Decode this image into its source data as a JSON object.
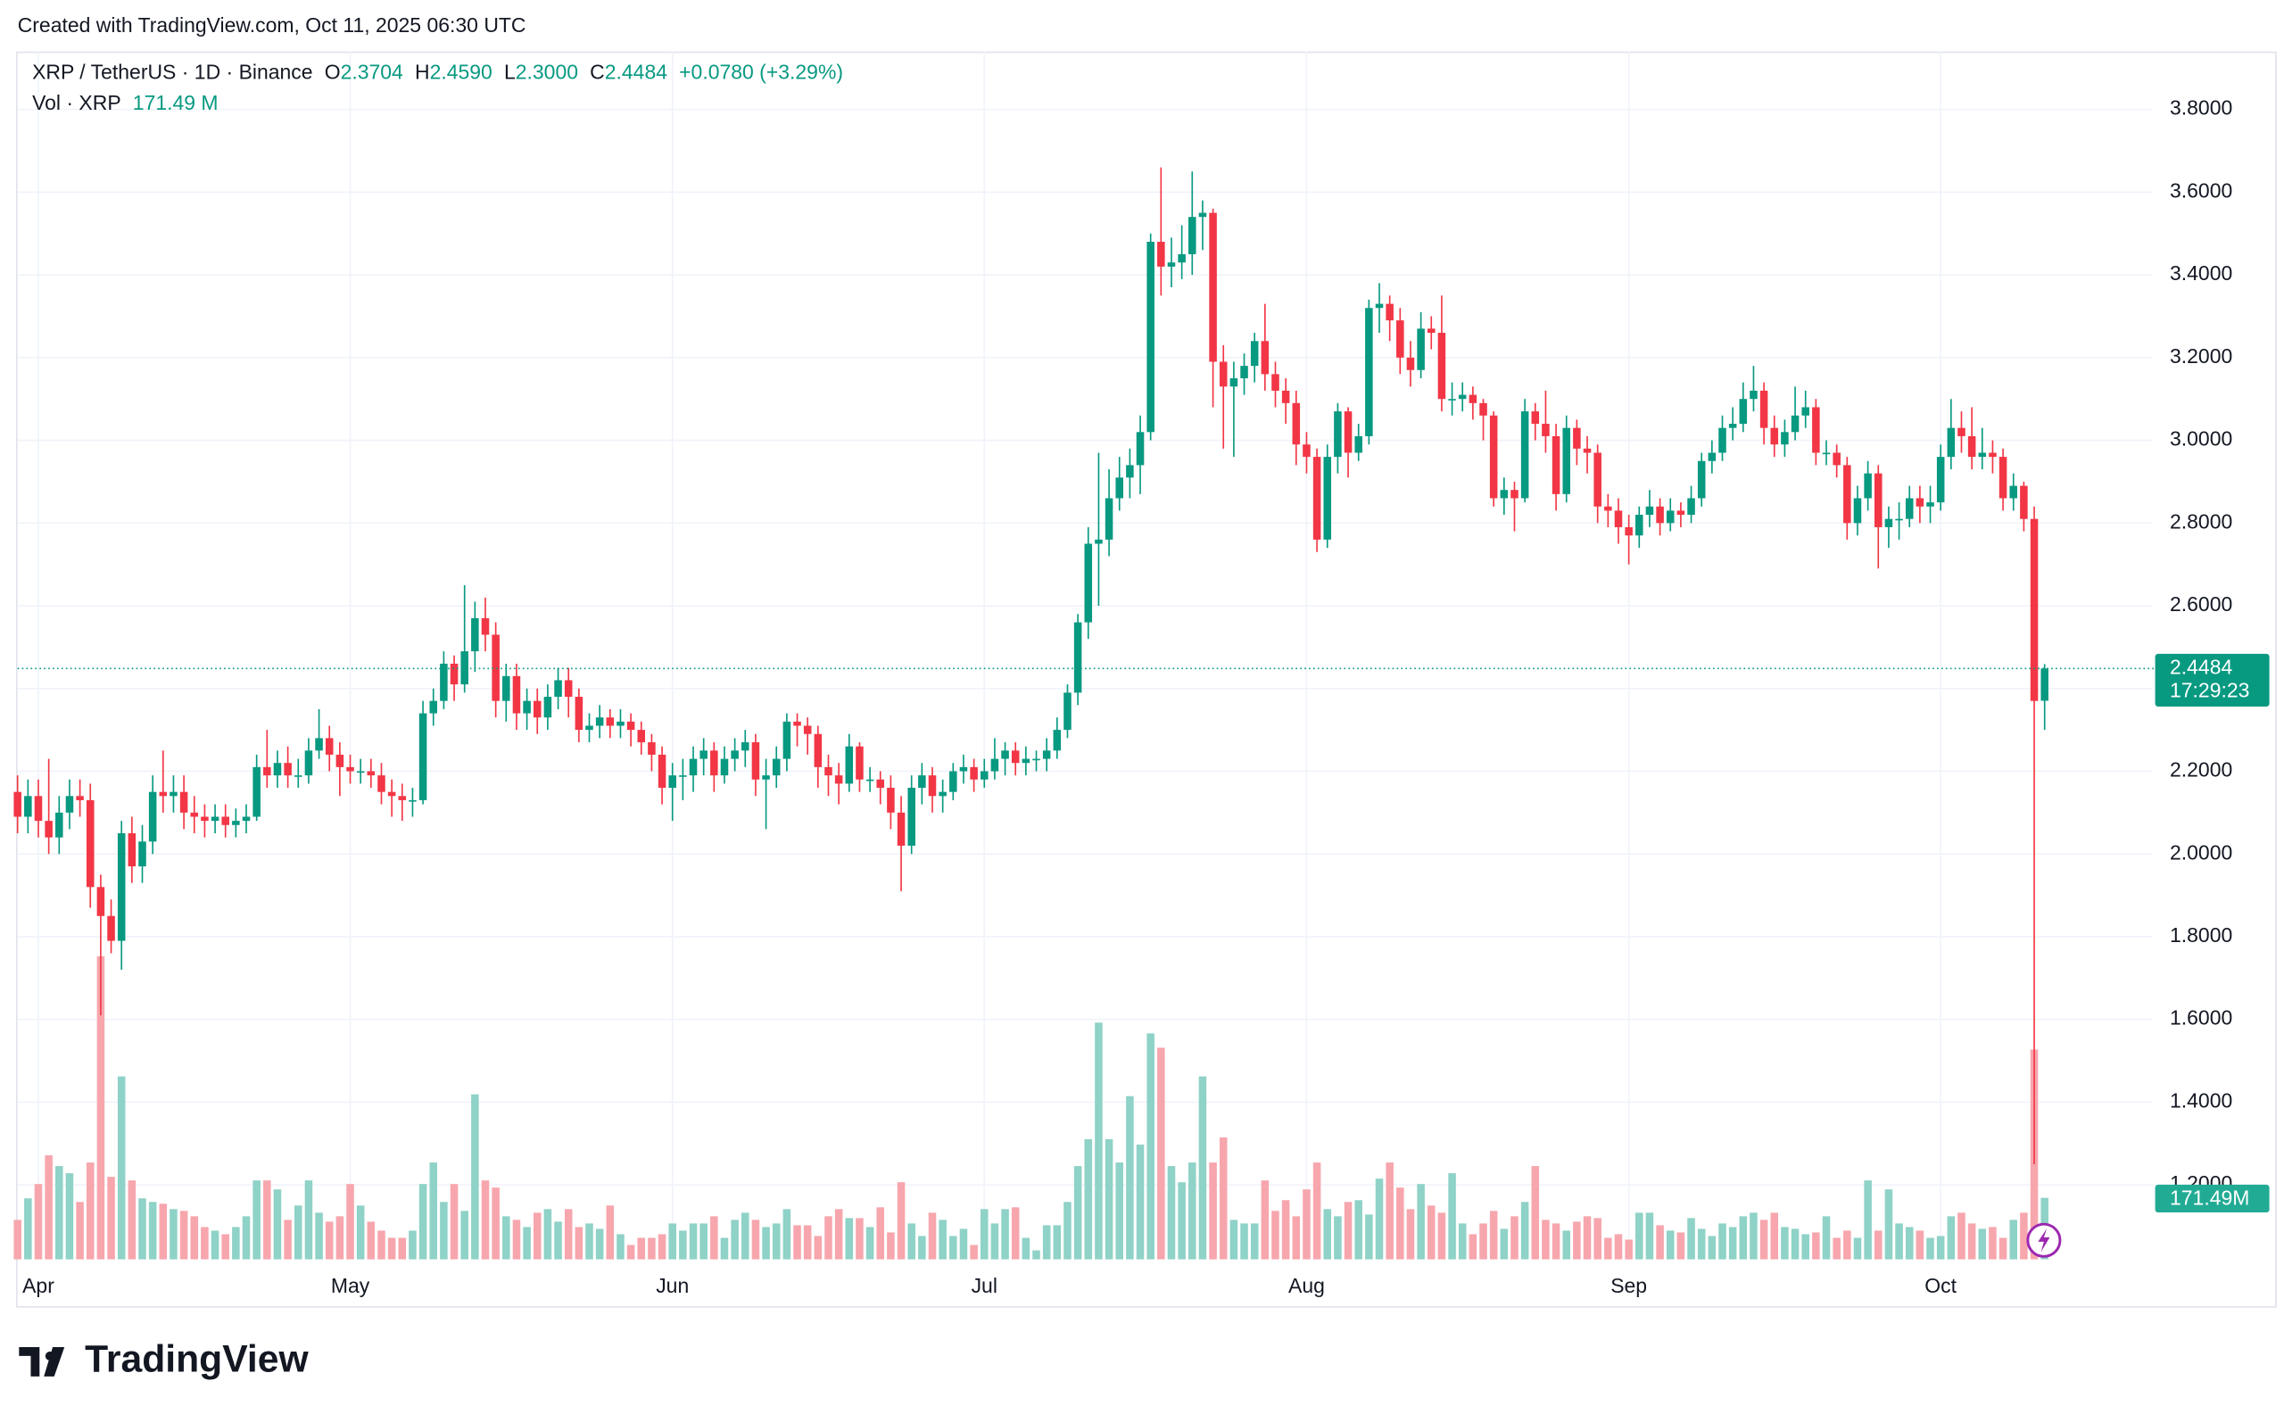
{
  "created": "Created with TradingView.com, Oct 11, 2025 06:30 UTC",
  "logo": "TradingView",
  "header": {
    "symbol": "XRP / TetherUS · 1D · Binance",
    "o_label": "O",
    "o": "2.3704",
    "h_label": "H",
    "h": "2.4590",
    "l_label": "L",
    "l": "2.3000",
    "c_label": "C",
    "c": "2.4484",
    "change": "+0.0780 (+3.29%)",
    "vol_label": "Vol · XRP",
    "vol": "171.49 M"
  },
  "chart_data": {
    "type": "candlestick",
    "up_color": "#089981",
    "down_color": "#f23645",
    "volume_up_color": "#8fd2c7",
    "volume_down_color": "#f7a6ad",
    "ylim": [
      1.02,
      3.94
    ],
    "yticks": [
      {
        "value": 1.2,
        "label": "1.2000"
      },
      {
        "value": 1.4,
        "label": "1.4000"
      },
      {
        "value": 1.6,
        "label": "1.6000"
      },
      {
        "value": 1.8,
        "label": "1.8000"
      },
      {
        "value": 2.0,
        "label": "2.0000"
      },
      {
        "value": 2.2,
        "label": "2.2000"
      },
      {
        "value": 2.4,
        "label": "2.4000"
      },
      {
        "value": 2.6,
        "label": "2.6000"
      },
      {
        "value": 2.8,
        "label": "2.8000"
      },
      {
        "value": 3.0,
        "label": "3.0000"
      },
      {
        "value": 3.2,
        "label": "3.2000"
      },
      {
        "value": 3.4,
        "label": "3.4000"
      },
      {
        "value": 3.6,
        "label": "3.6000"
      },
      {
        "value": 3.8,
        "label": "3.8000"
      }
    ],
    "grid": true,
    "countdown": "17:29:23",
    "volume_tag": "171.49M",
    "categories": [
      null,
      null,
      "Apr",
      null,
      null,
      null,
      null,
      null,
      null,
      null,
      null,
      null,
      null,
      null,
      null,
      null,
      null,
      null,
      null,
      null,
      null,
      null,
      null,
      null,
      null,
      null,
      null,
      null,
      null,
      null,
      null,
      null,
      "May",
      null,
      null,
      null,
      null,
      null,
      null,
      null,
      null,
      null,
      null,
      null,
      null,
      null,
      null,
      null,
      null,
      null,
      null,
      null,
      null,
      null,
      null,
      null,
      null,
      null,
      null,
      null,
      null,
      null,
      null,
      "Jun",
      null,
      null,
      null,
      null,
      null,
      null,
      null,
      null,
      null,
      null,
      null,
      null,
      null,
      null,
      null,
      null,
      null,
      null,
      null,
      null,
      null,
      null,
      null,
      null,
      null,
      null,
      null,
      null,
      null,
      "Jul",
      null,
      null,
      null,
      null,
      null,
      null,
      null,
      null,
      null,
      null,
      null,
      null,
      null,
      null,
      null,
      null,
      null,
      null,
      null,
      null,
      null,
      null,
      null,
      null,
      null,
      null,
      null,
      null,
      null,
      null,
      "Aug",
      null,
      null,
      null,
      null,
      null,
      null,
      null,
      null,
      null,
      null,
      null,
      null,
      null,
      null,
      null,
      null,
      null,
      null,
      null,
      null,
      null,
      null,
      null,
      null,
      null,
      null,
      null,
      null,
      null,
      null,
      "Sep",
      null,
      null,
      null,
      null,
      null,
      null,
      null,
      null,
      null,
      null,
      null,
      null,
      null,
      null,
      null,
      null,
      null,
      null,
      null,
      null,
      null,
      null,
      null,
      null,
      null,
      null,
      null,
      null,
      null,
      "Oct",
      null,
      null,
      null,
      null,
      null,
      null,
      null,
      null,
      null,
      null
    ],
    "open": [
      2.15,
      2.09,
      2.14,
      2.08,
      2.04,
      2.1,
      2.14,
      2.13,
      1.92,
      1.85,
      1.79,
      2.05,
      1.97,
      2.03,
      2.15,
      2.14,
      2.15,
      2.1,
      2.09,
      2.08,
      2.09,
      2.07,
      2.08,
      2.09,
      2.21,
      2.19,
      2.22,
      2.19,
      2.19,
      2.25,
      2.28,
      2.24,
      2.21,
      2.2,
      2.2,
      2.19,
      2.15,
      2.14,
      2.13,
      2.13,
      2.34,
      2.37,
      2.46,
      2.41,
      2.49,
      2.57,
      2.53,
      2.37,
      2.43,
      2.34,
      2.37,
      2.33,
      2.38,
      2.42,
      2.38,
      2.3,
      2.31,
      2.33,
      2.31,
      2.32,
      2.3,
      2.27,
      2.24,
      2.16,
      2.19,
      2.19,
      2.23,
      2.25,
      2.19,
      2.23,
      2.25,
      2.27,
      2.18,
      2.19,
      2.23,
      2.32,
      2.31,
      2.29,
      2.21,
      2.19,
      2.17,
      2.26,
      2.18,
      2.18,
      2.16,
      2.1,
      2.02,
      2.16,
      2.19,
      2.14,
      2.15,
      2.2,
      2.21,
      2.18,
      2.2,
      2.23,
      2.25,
      2.22,
      2.23,
      2.23,
      2.25,
      2.3,
      2.39,
      2.56,
      2.75,
      2.76,
      2.86,
      2.91,
      2.94,
      3.02,
      3.48,
      3.42,
      3.43,
      3.45,
      3.54,
      3.55,
      3.19,
      3.13,
      3.15,
      3.18,
      3.24,
      3.16,
      3.12,
      3.09,
      2.99,
      2.96,
      2.76,
      2.96,
      3.07,
      2.97,
      3.01,
      3.32,
      3.33,
      3.29,
      3.2,
      3.17,
      3.27,
      3.26,
      3.1,
      3.1,
      3.11,
      3.09,
      3.06,
      2.86,
      2.88,
      2.86,
      3.07,
      3.04,
      3.01,
      2.87,
      3.03,
      2.98,
      2.97,
      2.84,
      2.83,
      2.79,
      2.77,
      2.82,
      2.84,
      2.8,
      2.83,
      2.82,
      2.86,
      2.95,
      2.97,
      3.03,
      3.04,
      3.1,
      3.12,
      3.03,
      2.99,
      3.02,
      3.06,
      3.08,
      2.97,
      2.97,
      2.94,
      2.8,
      2.86,
      2.92,
      2.79,
      2.81,
      2.81,
      2.86,
      2.84,
      2.85,
      2.96,
      3.03,
      3.01,
      2.96,
      2.97,
      2.96,
      2.86,
      2.89,
      2.81,
      2.3704
    ],
    "high": [
      2.19,
      2.18,
      2.18,
      2.23,
      2.14,
      2.18,
      2.18,
      2.17,
      1.95,
      1.89,
      2.08,
      2.09,
      2.07,
      2.19,
      2.25,
      2.19,
      2.19,
      2.14,
      2.12,
      2.12,
      2.12,
      2.11,
      2.12,
      2.24,
      2.3,
      2.25,
      2.26,
      2.23,
      2.28,
      2.35,
      2.31,
      2.27,
      2.24,
      2.23,
      2.23,
      2.22,
      2.18,
      2.17,
      2.16,
      2.37,
      2.4,
      2.49,
      2.48,
      2.65,
      2.61,
      2.62,
      2.56,
      2.46,
      2.46,
      2.4,
      2.4,
      2.41,
      2.45,
      2.45,
      2.4,
      2.34,
      2.36,
      2.35,
      2.35,
      2.34,
      2.32,
      2.29,
      2.26,
      2.22,
      2.23,
      2.26,
      2.28,
      2.27,
      2.26,
      2.28,
      2.3,
      2.29,
      2.23,
      2.26,
      2.34,
      2.34,
      2.33,
      2.31,
      2.24,
      2.22,
      2.29,
      2.27,
      2.21,
      2.2,
      2.19,
      2.14,
      2.19,
      2.22,
      2.21,
      2.18,
      2.22,
      2.24,
      2.23,
      2.23,
      2.28,
      2.27,
      2.27,
      2.26,
      2.25,
      2.28,
      2.33,
      2.41,
      2.58,
      2.79,
      2.97,
      2.93,
      2.96,
      2.98,
      3.06,
      3.5,
      3.66,
      3.49,
      3.52,
      3.65,
      3.58,
      3.56,
      3.23,
      3.19,
      3.21,
      3.26,
      3.33,
      3.19,
      3.15,
      3.12,
      3.02,
      2.98,
      2.99,
      3.09,
      3.08,
      3.04,
      3.34,
      3.38,
      3.35,
      3.32,
      3.24,
      3.31,
      3.3,
      3.35,
      3.14,
      3.14,
      3.13,
      3.1,
      3.07,
      2.91,
      2.9,
      3.1,
      3.09,
      3.12,
      3.04,
      3.06,
      3.05,
      3.01,
      2.99,
      2.87,
      2.86,
      2.82,
      2.84,
      2.88,
      2.86,
      2.86,
      2.85,
      2.89,
      2.97,
      3.0,
      3.06,
      3.08,
      3.14,
      3.18,
      3.14,
      3.06,
      3.05,
      3.13,
      3.12,
      3.1,
      3.0,
      2.99,
      2.96,
      2.89,
      2.95,
      2.94,
      2.84,
      2.85,
      2.89,
      2.89,
      2.89,
      2.99,
      3.1,
      3.07,
      3.08,
      3.03,
      3.0,
      2.98,
      2.92,
      2.9,
      2.84,
      2.459
    ],
    "low": [
      2.05,
      2.05,
      2.04,
      2.0,
      2.0,
      2.06,
      2.09,
      1.87,
      1.61,
      1.76,
      1.72,
      1.93,
      1.93,
      2.0,
      2.1,
      2.1,
      2.06,
      2.05,
      2.04,
      2.05,
      2.04,
      2.04,
      2.05,
      2.08,
      2.16,
      2.16,
      2.16,
      2.16,
      2.17,
      2.23,
      2.2,
      2.14,
      2.17,
      2.17,
      2.16,
      2.12,
      2.09,
      2.08,
      2.09,
      2.12,
      2.31,
      2.35,
      2.37,
      2.39,
      2.44,
      2.49,
      2.33,
      2.32,
      2.3,
      2.3,
      2.29,
      2.3,
      2.35,
      2.33,
      2.27,
      2.27,
      2.28,
      2.28,
      2.28,
      2.26,
      2.24,
      2.2,
      2.12,
      2.08,
      2.13,
      2.15,
      2.19,
      2.15,
      2.17,
      2.2,
      2.21,
      2.14,
      2.06,
      2.16,
      2.2,
      2.26,
      2.24,
      2.16,
      2.14,
      2.12,
      2.15,
      2.15,
      2.15,
      2.12,
      2.06,
      1.91,
      2.0,
      2.12,
      2.1,
      2.1,
      2.13,
      2.17,
      2.15,
      2.16,
      2.18,
      2.19,
      2.19,
      2.19,
      2.2,
      2.2,
      2.23,
      2.28,
      2.36,
      2.52,
      2.6,
      2.72,
      2.83,
      2.86,
      2.87,
      3.0,
      3.35,
      3.37,
      3.39,
      3.4,
      3.46,
      3.08,
      2.98,
      2.96,
      3.11,
      3.14,
      3.12,
      3.08,
      3.04,
      2.94,
      2.92,
      2.73,
      2.74,
      2.92,
      2.91,
      2.95,
      2.99,
      3.26,
      3.24,
      3.16,
      3.13,
      3.15,
      3.22,
      3.07,
      3.06,
      3.07,
      3.05,
      3.0,
      2.84,
      2.82,
      2.78,
      2.85,
      3.0,
      2.97,
      2.83,
      2.85,
      2.94,
      2.92,
      2.8,
      2.79,
      2.75,
      2.7,
      2.74,
      2.79,
      2.77,
      2.78,
      2.79,
      2.8,
      2.84,
      2.92,
      2.95,
      3.0,
      3.02,
      3.07,
      2.99,
      2.96,
      2.96,
      3.0,
      3.03,
      2.94,
      2.94,
      2.91,
      2.76,
      2.77,
      2.83,
      2.69,
      2.74,
      2.76,
      2.79,
      2.8,
      2.8,
      2.83,
      2.93,
      2.97,
      2.93,
      2.93,
      2.92,
      2.83,
      2.83,
      2.78,
      1.25,
      2.3
    ],
    "close": [
      2.09,
      2.14,
      2.08,
      2.04,
      2.1,
      2.14,
      2.13,
      1.92,
      1.85,
      1.79,
      2.05,
      1.97,
      2.03,
      2.15,
      2.14,
      2.15,
      2.1,
      2.09,
      2.08,
      2.09,
      2.07,
      2.08,
      2.09,
      2.21,
      2.19,
      2.22,
      2.19,
      2.19,
      2.25,
      2.28,
      2.24,
      2.21,
      2.2,
      2.2,
      2.19,
      2.15,
      2.14,
      2.13,
      2.13,
      2.34,
      2.37,
      2.46,
      2.41,
      2.49,
      2.57,
      2.53,
      2.37,
      2.43,
      2.34,
      2.37,
      2.33,
      2.38,
      2.42,
      2.38,
      2.3,
      2.31,
      2.33,
      2.31,
      2.32,
      2.3,
      2.27,
      2.24,
      2.16,
      2.19,
      2.19,
      2.23,
      2.25,
      2.19,
      2.23,
      2.25,
      2.27,
      2.18,
      2.19,
      2.23,
      2.32,
      2.31,
      2.29,
      2.21,
      2.19,
      2.17,
      2.26,
      2.18,
      2.18,
      2.16,
      2.1,
      2.02,
      2.16,
      2.19,
      2.14,
      2.15,
      2.2,
      2.21,
      2.18,
      2.2,
      2.23,
      2.25,
      2.22,
      2.23,
      2.23,
      2.25,
      2.3,
      2.39,
      2.56,
      2.75,
      2.76,
      2.86,
      2.91,
      2.94,
      3.02,
      3.48,
      3.42,
      3.43,
      3.45,
      3.54,
      3.55,
      3.19,
      3.13,
      3.15,
      3.18,
      3.24,
      3.16,
      3.12,
      3.09,
      2.99,
      2.96,
      2.76,
      2.96,
      3.07,
      2.97,
      3.01,
      3.32,
      3.33,
      3.29,
      3.2,
      3.17,
      3.27,
      3.26,
      3.1,
      3.1,
      3.11,
      3.09,
      3.06,
      2.86,
      2.88,
      2.86,
      3.07,
      3.04,
      3.01,
      2.87,
      3.03,
      2.98,
      2.97,
      2.84,
      2.83,
      2.79,
      2.77,
      2.82,
      2.84,
      2.8,
      2.83,
      2.82,
      2.86,
      2.95,
      2.97,
      3.03,
      3.04,
      3.1,
      3.12,
      3.03,
      2.99,
      3.02,
      3.06,
      3.08,
      2.97,
      2.97,
      2.94,
      2.8,
      2.86,
      2.92,
      2.79,
      2.81,
      2.81,
      2.86,
      2.84,
      2.85,
      2.96,
      3.03,
      3.01,
      2.96,
      2.97,
      2.96,
      2.86,
      2.89,
      2.81,
      2.37,
      2.4484
    ],
    "volume": [
      110,
      170,
      210,
      290,
      260,
      240,
      160,
      270,
      845,
      230,
      510,
      220,
      170,
      160,
      155,
      140,
      135,
      120,
      90,
      80,
      70,
      90,
      120,
      220,
      220,
      195,
      110,
      150,
      220,
      130,
      105,
      120,
      210,
      150,
      105,
      80,
      60,
      60,
      80,
      210,
      270,
      160,
      210,
      135,
      460,
      220,
      200,
      120,
      110,
      90,
      130,
      140,
      105,
      140,
      90,
      100,
      85,
      150,
      70,
      40,
      60,
      60,
      70,
      100,
      80,
      100,
      100,
      120,
      60,
      110,
      130,
      110,
      90,
      100,
      140,
      95,
      95,
      65,
      120,
      140,
      115,
      115,
      90,
      145,
      75,
      215,
      100,
      65,
      130,
      110,
      65,
      85,
      40,
      140,
      100,
      140,
      145,
      60,
      25,
      95,
      95,
      160,
      260,
      335,
      660,
      335,
      270,
      455,
      320,
      630,
      590,
      260,
      215,
      270,
      510,
      270,
      340,
      110,
      100,
      100,
      220,
      135,
      165,
      120,
      195,
      270,
      140,
      120,
      160,
      165,
      125,
      225,
      270,
      200,
      140,
      210,
      150,
      130,
      240,
      100,
      70,
      100,
      135,
      85,
      120,
      160,
      260,
      110,
      100,
      80,
      105,
      120,
      115,
      60,
      70,
      55,
      130,
      130,
      95,
      80,
      75,
      115,
      85,
      65,
      100,
      90,
      120,
      130,
      110,
      130,
      90,
      85,
      70,
      75,
      120,
      60,
      80,
      60,
      220,
      80,
      195,
      100,
      90,
      80,
      60,
      65,
      120,
      130,
      100,
      85,
      90,
      60,
      110,
      130,
      585,
      171.49
    ]
  }
}
